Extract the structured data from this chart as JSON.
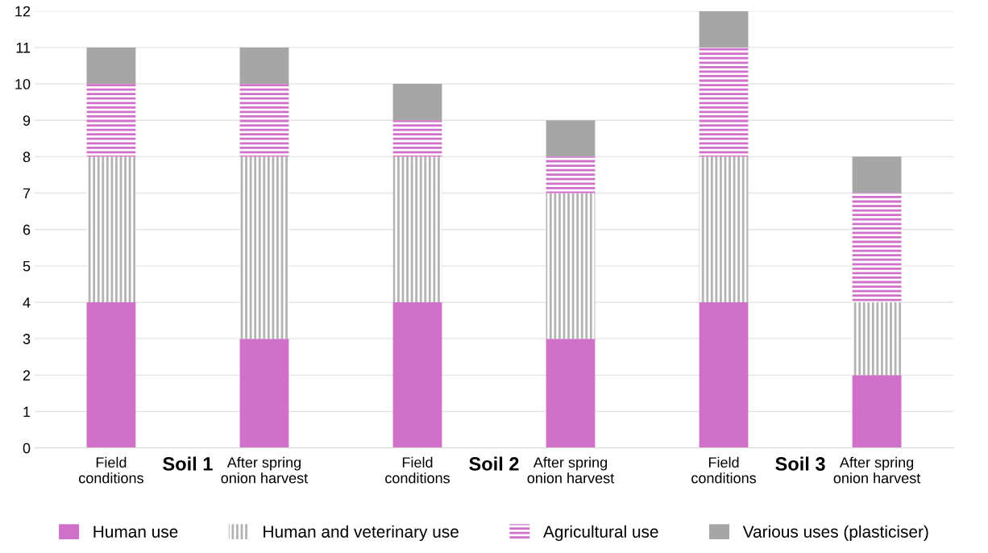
{
  "chart_data": {
    "type": "bar",
    "stacked": true,
    "categories": [
      "Field\nconditions",
      "After spring\nonion harvest",
      "Field\nconditions",
      "After spring\nonion harvest",
      "Field\nconditions",
      "After spring\nonion harvest"
    ],
    "series": [
      {
        "name": "Human use",
        "color": "#d070c8",
        "values": [
          4,
          3,
          4,
          3,
          4,
          2
        ]
      },
      {
        "name": "Human and veterinary use",
        "color": "#b3b3b3",
        "values": [
          4,
          5,
          4,
          4,
          4,
          2
        ]
      },
      {
        "name": "Agricultural use",
        "color": "#d070c8",
        "values": [
          2,
          2,
          1,
          1,
          3,
          3
        ]
      },
      {
        "name": "Various uses (plasticiser)",
        "color": "#a6a6a6",
        "values": [
          1,
          1,
          1,
          1,
          1,
          1
        ]
      }
    ],
    "ylim": [
      0,
      12
    ],
    "yticks": [
      0,
      1,
      2,
      3,
      4,
      5,
      6,
      7,
      8,
      9,
      10,
      11,
      12
    ],
    "annotations": [
      "Soil 1",
      "Soil 2",
      "Soil 3"
    ],
    "grid": "y",
    "legend": "bottom"
  }
}
